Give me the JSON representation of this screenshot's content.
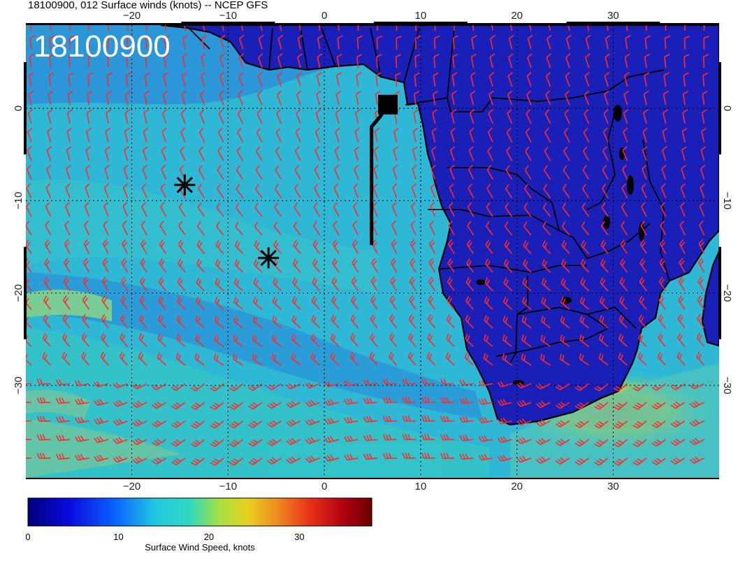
{
  "title": "18100900, 012 Surface winds (knots) -- NCEP GFS",
  "stamp": "18100900",
  "lon_ticks": [
    "−20",
    "−10",
    "0",
    "10",
    "20",
    "30"
  ],
  "lat_ticks": [
    "0",
    "−10",
    "−20",
    "−30"
  ],
  "lon_range": [
    -31,
    41
  ],
  "lat_range": [
    -40,
    9
  ],
  "colorbar": {
    "ticks": [
      "0",
      "10",
      "20",
      "30"
    ],
    "range": [
      0,
      38
    ],
    "label": "Surface Wind Speed, knots"
  },
  "markers": [
    {
      "type": "asterisk",
      "lon": -14.5,
      "lat": -8.3
    },
    {
      "type": "asterisk",
      "lon": -5.8,
      "lat": -16.2
    }
  ],
  "square_marker": {
    "lon": 6.6,
    "lat": 0.4
  },
  "flight_track": [
    [
      4.9,
      -14.8
    ],
    [
      4.9,
      -2.0
    ],
    [
      5.8,
      -0.9
    ],
    [
      6.6,
      0.4
    ]
  ],
  "colors": {
    "land": "#1a1fb8",
    "ocean": "#2fb8d6",
    "barb": "#ff2a2a",
    "stamp": "#ffffff"
  }
}
